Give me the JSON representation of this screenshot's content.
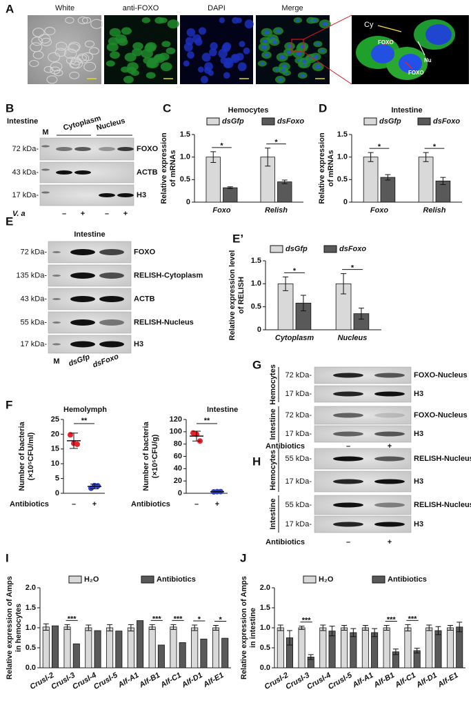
{
  "panel_labels": [
    "A",
    "B",
    "C",
    "D",
    "E",
    "E’",
    "F",
    "G",
    "H",
    "I",
    "J"
  ],
  "panel_a": {
    "titles": [
      "White",
      "anti-FOXO",
      "DAPI",
      "Merge"
    ],
    "inset_labels": [
      "Cy",
      "Nu",
      "FOXO",
      "FOXO"
    ]
  },
  "panel_b": {
    "title": "Intestine",
    "marker_lane": "M",
    "groups": [
      "Cytoplasm",
      "Nucleus"
    ],
    "rows": [
      {
        "marker": "72 kDa-",
        "name": "FOXO"
      },
      {
        "marker": "43 kDa-",
        "name": "ACTB"
      },
      {
        "marker": "17 kDa-",
        "name": "H3"
      }
    ],
    "treatment": "V. a",
    "lanes": [
      "–",
      "+",
      "–",
      "+"
    ]
  },
  "panel_e": {
    "title": "Intestine",
    "rows": [
      {
        "marker": "72 kDa-",
        "name": "FOXO"
      },
      {
        "marker": "135 kDa-",
        "name": "RELISH-Cytoplasm"
      },
      {
        "marker": "43 kDa-",
        "name": "ACTB"
      },
      {
        "marker": "55 kDa-",
        "name": "RELISH-Nucleus"
      },
      {
        "marker": "17 kDa-",
        "name": "H3"
      }
    ],
    "lanes": [
      "M",
      "dsGfp",
      "dsFoxo"
    ]
  },
  "panel_g": {
    "groups": [
      {
        "tissue": "Hemocytes",
        "rows": [
          {
            "marker": "72 kDa-",
            "name": "FOXO-Nucleus"
          },
          {
            "marker": "17 kDa-",
            "name": "H3"
          }
        ]
      },
      {
        "tissue": "Intestine",
        "rows": [
          {
            "marker": "72 kDa-",
            "name": "FOXO-Nucleus"
          },
          {
            "marker": "17 kDa-",
            "name": "H3"
          }
        ]
      }
    ],
    "treatment": "Antibiotics",
    "lanes": [
      "–",
      "+"
    ]
  },
  "panel_h": {
    "groups": [
      {
        "tissue": "Hemocytes",
        "rows": [
          {
            "marker": "55 kDa-",
            "name": "RELISH-Nucleus"
          },
          {
            "marker": "17 kDa-",
            "name": "H3"
          }
        ]
      },
      {
        "tissue": "Intestine",
        "rows": [
          {
            "marker": "55 kDa-",
            "name": "RELISH-Nucleus"
          },
          {
            "marker": "17 kDa-",
            "name": "H3"
          }
        ]
      }
    ],
    "treatment": "Antibiotics",
    "lanes": [
      "–",
      "+"
    ]
  },
  "chart_data": [
    {
      "type": "bar",
      "title": "Hemocytes",
      "ylabel": [
        "Relative expression",
        "of mRNAs"
      ],
      "categories": [
        "Foxo",
        "Relish"
      ],
      "series": [
        {
          "name": "dsGfp",
          "color": "#d9d9d9",
          "values": [
            1.0,
            1.0
          ],
          "errors": [
            0.12,
            0.2
          ]
        },
        {
          "name": "dsFoxo",
          "color": "#595959",
          "values": [
            0.32,
            0.45
          ],
          "errors": [
            0.02,
            0.04
          ]
        }
      ],
      "ylim": [
        0,
        1.5
      ],
      "yticks": [
        0,
        0.5,
        {
          "value": 1,
          "label": "1.0"
        },
        1.5
      ],
      "significance": [
        "*",
        "*"
      ]
    },
    {
      "type": "bar",
      "title": "Intestine",
      "ylabel": [
        "Relative expression",
        "of mRNAs"
      ],
      "categories": [
        "Foxo",
        "Relish"
      ],
      "series": [
        {
          "name": "dsGfp",
          "color": "#d9d9d9",
          "values": [
            1.0,
            1.0
          ],
          "errors": [
            0.1,
            0.1
          ]
        },
        {
          "name": "dsFoxo",
          "color": "#595959",
          "values": [
            0.55,
            0.47
          ],
          "errors": [
            0.06,
            0.08
          ]
        }
      ],
      "ylim": [
        0,
        1.5
      ],
      "yticks": [
        0,
        0.5,
        {
          "value": 1,
          "label": "1.0"
        },
        1.5
      ],
      "significance": [
        "*",
        "*"
      ]
    },
    {
      "type": "bar",
      "ylabel": [
        "Relative expression level",
        "of RELISH"
      ],
      "categories": [
        "Cytoplasm",
        "Nucleus"
      ],
      "series": [
        {
          "name": "dsGfp",
          "color": "#d9d9d9",
          "values": [
            1.0,
            1.0
          ],
          "errors": [
            0.15,
            0.22
          ]
        },
        {
          "name": "dsFoxo",
          "color": "#595959",
          "values": [
            0.58,
            0.35
          ],
          "errors": [
            0.17,
            0.12
          ]
        }
      ],
      "ylim": [
        0,
        1.5
      ],
      "yticks": [
        0,
        0.5,
        {
          "value": 1,
          "label": "1.0"
        },
        1.5
      ],
      "significance": [
        "*",
        "*"
      ]
    },
    {
      "type": "dot",
      "title": "Hemolymph",
      "ylabel": [
        "Number of bacteria",
        "(×10⁵CFU/ml)"
      ],
      "xlabel": "Antibiotics",
      "categories": [
        "–",
        "+"
      ],
      "values": [
        17.8,
        2.3
      ],
      "errors": [
        2.6,
        0.8
      ],
      "points": [
        [
          19.8,
          16.9,
          16.6
        ],
        [
          1.7,
          2.6,
          2.5
        ]
      ],
      "colors": [
        "#e8202a",
        "#2f3fd0"
      ],
      "ylim": [
        0,
        25
      ],
      "yticks": [
        0,
        5,
        10,
        15,
        20,
        25
      ],
      "significance": "**"
    },
    {
      "type": "dot",
      "title": "Intestine",
      "ylabel": [
        "Number of bacteria",
        "(×10⁵CFU/g)"
      ],
      "xlabel": "Antibiotics",
      "categories": [
        "–",
        "+"
      ],
      "values": [
        93,
        2.5
      ],
      "errors": [
        8,
        0.6
      ],
      "points": [
        [
          98,
          96,
          85
        ],
        [
          2.3,
          2.6,
          2.7
        ]
      ],
      "colors": [
        "#e8202a",
        "#2f3fd0"
      ],
      "ylim": [
        0,
        120
      ],
      "yticks": [
        0,
        20,
        40,
        60,
        80,
        100,
        120
      ],
      "significance": "**"
    },
    {
      "type": "bar",
      "ylabel": [
        "Relative expression of Amps",
        "in hemocytes"
      ],
      "categories": [
        "Crusl-2",
        "Crusl-3",
        "Crusl-4",
        "Crusl-5",
        "Alf-A1",
        "Alf-B1",
        "Alf-C1",
        "Alf-D1",
        "Alf-E1"
      ],
      "series": [
        {
          "name": "H₂O",
          "color": "#d9d9d9",
          "values": [
            1.02,
            1.02,
            1.0,
            1.0,
            1.0,
            1.02,
            1.02,
            1.0,
            1.0
          ],
          "errors": [
            0.08,
            0.06,
            0.07,
            0.08,
            0.08,
            0.06,
            0.06,
            0.07,
            0.06
          ]
        },
        {
          "name": "Antibiotics",
          "color": "#595959",
          "values": [
            1.05,
            0.6,
            0.93,
            0.92,
            1.18,
            0.57,
            0.63,
            0.72,
            0.74
          ]
        }
      ],
      "ylim": [
        0,
        2
      ],
      "yticks": [
        {
          "value": 0,
          "label": "0.0"
        },
        0.5,
        {
          "value": 1,
          "label": "1.0"
        },
        1.5,
        {
          "value": 2,
          "label": "2.0"
        }
      ],
      "significance": [
        null,
        "***",
        null,
        null,
        null,
        "***",
        "***",
        "*",
        "*"
      ]
    },
    {
      "type": "bar",
      "ylabel": [
        "Relative expression of Amps",
        "in intestine"
      ],
      "categories": [
        "Crusl-2",
        "Crusl-3",
        "Crusl-4",
        "Crusl-5",
        "Alf-A1",
        "Alf-B1",
        "Alf-C1",
        "Alf-D1",
        "Alf-E1"
      ],
      "series": [
        {
          "name": "H₂O",
          "color": "#d9d9d9",
          "values": [
            1.0,
            1.0,
            1.0,
            1.0,
            1.0,
            1.0,
            1.0,
            1.0,
            1.0
          ],
          "errors": [
            0.07,
            0.04,
            0.07,
            0.06,
            0.06,
            0.06,
            0.08,
            0.07,
            0.06
          ]
        },
        {
          "name": "Antibiotics",
          "color": "#595959",
          "values": [
            0.75,
            0.27,
            0.92,
            0.88,
            0.88,
            0.4,
            0.43,
            0.93,
            1.02
          ],
          "errors": [
            0.18,
            0.06,
            0.12,
            0.1,
            0.1,
            0.07,
            0.06,
            0.1,
            0.12
          ]
        }
      ],
      "ylim": [
        0,
        2
      ],
      "yticks": [
        {
          "value": 0,
          "label": "0.0"
        },
        0.5,
        {
          "value": 1,
          "label": "1.0"
        },
        1.5,
        {
          "value": 2,
          "label": "2.0"
        }
      ],
      "significance": [
        null,
        "***",
        null,
        null,
        null,
        "***",
        "***",
        null,
        null
      ]
    }
  ]
}
